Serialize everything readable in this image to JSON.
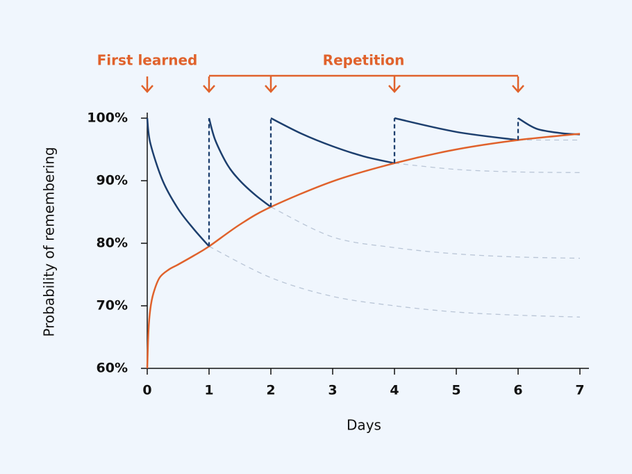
{
  "chart_data": {
    "type": "line",
    "y_label": "Probability of remembering",
    "x_label": "Days",
    "xlim": [
      0,
      7
    ],
    "ylim": [
      60,
      100
    ],
    "xticks": [
      0,
      1,
      2,
      3,
      4,
      5,
      6,
      7
    ],
    "yticks": [
      {
        "value": 60,
        "label": "60%"
      },
      {
        "value": 70,
        "label": "70%"
      },
      {
        "value": 80,
        "label": "80%"
      },
      {
        "value": 90,
        "label": "90%"
      },
      {
        "value": 100,
        "label": "100%"
      }
    ],
    "annotations": [
      {
        "text": "First learned",
        "x": [
          0
        ]
      },
      {
        "text": "Repetition",
        "x": [
          1,
          2,
          4,
          6
        ]
      }
    ],
    "series": [
      {
        "color": "#1d3f6e",
        "dashed": false,
        "x": [
          0,
          0.05,
          0.25,
          0.5,
          0.75,
          1
        ],
        "values": [
          100,
          96,
          90,
          85.5,
          82.3,
          79.5
        ]
      },
      {
        "color": "#1d3f6e",
        "dashed": false,
        "x": [
          1,
          1.1,
          1.3,
          1.5,
          1.75,
          2
        ],
        "values": [
          100,
          96.5,
          92.5,
          90,
          87.7,
          85.8
        ]
      },
      {
        "color": "#1d3f6e",
        "dashed": false,
        "x": [
          2,
          2.5,
          3,
          3.5,
          4
        ],
        "values": [
          100,
          97.5,
          95.5,
          93.9,
          92.8
        ]
      },
      {
        "color": "#1d3f6e",
        "dashed": false,
        "x": [
          4,
          5,
          6
        ],
        "values": [
          100,
          97.8,
          96.5
        ]
      },
      {
        "color": "#1d3f6e",
        "dashed": false,
        "x": [
          6,
          6.3,
          6.7,
          7
        ],
        "values": [
          100,
          98.3,
          97.6,
          97.4
        ]
      },
      {
        "color": "#b9c5d6",
        "dashed": true,
        "x": [
          1,
          2,
          3,
          4,
          5,
          6,
          7
        ],
        "values": [
          79.5,
          74.5,
          71.5,
          70,
          69,
          68.5,
          68.2
        ]
      },
      {
        "color": "#b9c5d6",
        "dashed": true,
        "x": [
          2,
          3,
          4,
          5,
          6,
          7
        ],
        "values": [
          85.8,
          81,
          79.3,
          78.3,
          77.8,
          77.6
        ]
      },
      {
        "color": "#b9c5d6",
        "dashed": true,
        "x": [
          4,
          5,
          6,
          7
        ],
        "values": [
          92.8,
          91.8,
          91.4,
          91.3
        ]
      },
      {
        "color": "#b9c5d6",
        "dashed": true,
        "x": [
          6,
          7
        ],
        "values": [
          96.5,
          96.5
        ]
      },
      {
        "color": "#e0622c",
        "dashed": false,
        "x": [
          0,
          0.02,
          0.05,
          0.1,
          0.2,
          0.35,
          0.5,
          0.75,
          1,
          1.5,
          2,
          3,
          4,
          5,
          6,
          7
        ],
        "values": [
          60,
          66,
          69.5,
          72,
          74.5,
          75.8,
          76.6,
          78,
          79.5,
          83,
          85.8,
          89.9,
          92.8,
          95,
          96.5,
          97.5
        ]
      }
    ],
    "jump_color": "#1d3f6e",
    "annotation_color": "#e0622c"
  }
}
